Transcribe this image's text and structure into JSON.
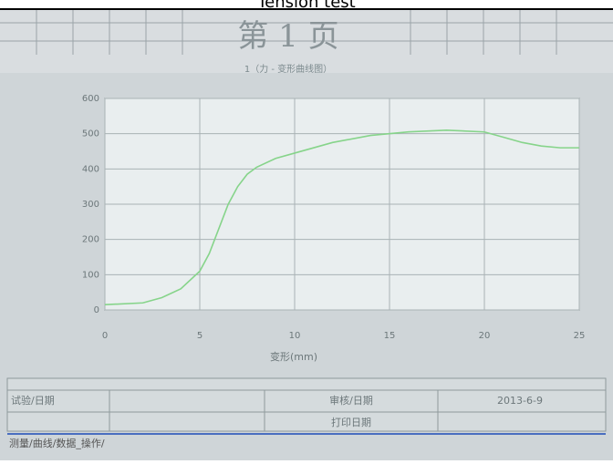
{
  "heading": "Tension test",
  "page_label": "第 1 页",
  "chart_data": {
    "type": "line",
    "title": "1（力 - 变形曲线图）",
    "x_label": "变形(mm)",
    "x": [
      0,
      2,
      3,
      4,
      5,
      5.5,
      6,
      6.5,
      7,
      7.5,
      8,
      9,
      10,
      12,
      14,
      16,
      18,
      20,
      21,
      22,
      23,
      24,
      25
    ],
    "series": [
      {
        "name": "力",
        "color": "#86d48a",
        "values": [
          15,
          20,
          35,
          60,
          110,
          160,
          230,
          300,
          350,
          385,
          405,
          430,
          445,
          475,
          495,
          505,
          510,
          505,
          490,
          475,
          465,
          460,
          460
        ]
      }
    ],
    "xlim": [
      0,
      25
    ],
    "xticks": [
      0,
      5,
      10,
      15,
      20,
      25
    ],
    "ylim": [
      0,
      600
    ],
    "yticks": [
      0,
      100,
      200,
      300,
      400,
      500,
      600
    ],
    "grid": true
  },
  "table": {
    "rows": [
      [
        "试验/日期",
        "",
        "审核/日期",
        "2013-6-9"
      ],
      [
        "",
        "",
        "打印日期",
        ""
      ]
    ]
  },
  "footer": "测量/曲线/数据_操作/"
}
